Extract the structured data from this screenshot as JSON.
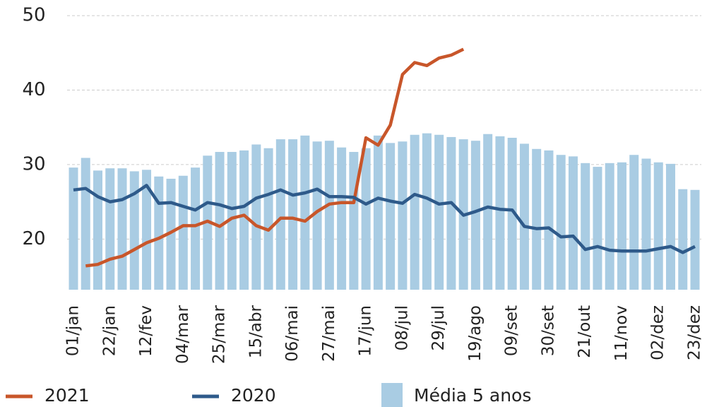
{
  "chart_data": {
    "type": "bar_line",
    "categories": [
      "01/jan",
      null,
      null,
      "22/jan",
      null,
      null,
      "12/fev",
      null,
      null,
      "04/mar",
      null,
      null,
      "25/mar",
      null,
      null,
      "15/abr",
      null,
      null,
      "06/mai",
      null,
      null,
      "27/mai",
      null,
      null,
      "17/jun",
      null,
      null,
      "08/jul",
      null,
      null,
      "29/jul",
      null,
      null,
      "19/ago",
      null,
      null,
      "09/set",
      null,
      null,
      "30/set",
      null,
      null,
      "21/out",
      null,
      null,
      "11/nov",
      null,
      null,
      "02/dez",
      null,
      null,
      "23/dez"
    ],
    "series": [
      {
        "name": "2021",
        "type": "line",
        "color": "#c8562a",
        "values": [
          null,
          16.4,
          16.6,
          17.3,
          17.7,
          18.6,
          19.5,
          20.1,
          20.9,
          21.8,
          21.8,
          22.4,
          21.7,
          22.8,
          23.2,
          21.8,
          21.2,
          22.8,
          22.8,
          22.4,
          23.7,
          24.7,
          24.9,
          24.9,
          33.6,
          32.6,
          35.3,
          42.1,
          43.7,
          43.3,
          44.3,
          44.7,
          45.5,
          null,
          null,
          null,
          null,
          null,
          null,
          null,
          null,
          null,
          null,
          null,
          null,
          null,
          null,
          null,
          null,
          null,
          null,
          null
        ]
      },
      {
        "name": "2020",
        "type": "line",
        "color": "#2e5a8a",
        "values": [
          26.6,
          26.8,
          25.7,
          25.0,
          25.3,
          26.1,
          27.2,
          24.8,
          24.9,
          24.4,
          23.9,
          24.9,
          24.6,
          24.1,
          24.4,
          25.5,
          26.0,
          26.6,
          25.9,
          26.2,
          26.7,
          25.7,
          25.7,
          25.6,
          24.7,
          25.5,
          25.1,
          24.8,
          26.0,
          25.5,
          24.7,
          24.9,
          23.2,
          23.7,
          24.3,
          24.0,
          23.9,
          21.7,
          21.4,
          21.5,
          20.3,
          20.4,
          18.6,
          19.0,
          18.5,
          18.4,
          18.4,
          18.4,
          18.7,
          19.0,
          18.2,
          19.0
        ]
      },
      {
        "name": "Média 5 anos",
        "type": "bar",
        "color": "#a9cce3",
        "values": [
          29.6,
          30.9,
          29.2,
          29.5,
          29.5,
          29.1,
          29.3,
          28.4,
          28.1,
          28.5,
          29.6,
          31.2,
          31.7,
          31.7,
          31.9,
          32.7,
          32.2,
          33.4,
          33.4,
          33.9,
          33.1,
          33.2,
          32.3,
          31.7,
          32.2,
          33.9,
          32.9,
          33.1,
          34.0,
          34.2,
          34.0,
          33.7,
          33.4,
          33.2,
          34.1,
          33.8,
          33.6,
          32.8,
          32.1,
          31.9,
          31.3,
          31.1,
          30.2,
          29.7,
          30.2,
          30.3,
          31.3,
          30.8,
          30.3,
          30.1,
          26.7,
          26.6
        ]
      }
    ],
    "ylim": [
      13.2,
      52.1
    ],
    "yticks": [
      20,
      30,
      40,
      50
    ],
    "grid": true
  }
}
